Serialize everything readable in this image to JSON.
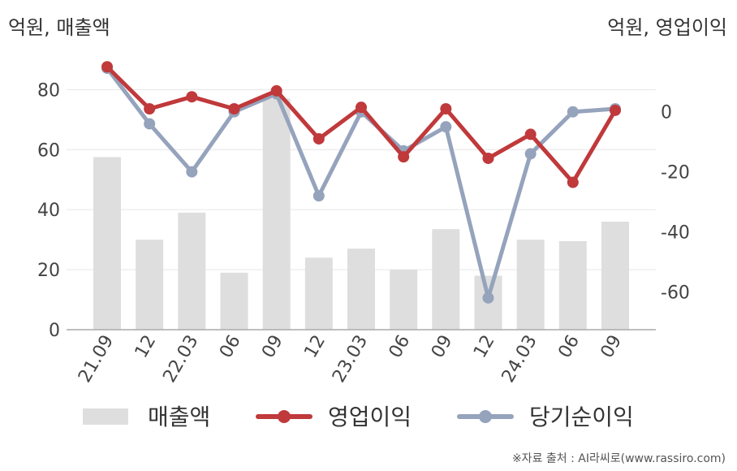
{
  "units": {
    "left": "억원, 매출액",
    "right": "억원, 영업이익"
  },
  "source": "※자료 출처 : AI라씨로(www.rassiro.com)",
  "colors": {
    "revenue": "#dedede",
    "operating_profit": "#c0393b",
    "net_income": "#95a3bc",
    "grid": "#e6e6e6",
    "axis": "#aaaaaa"
  },
  "chart_data": {
    "type": "bar",
    "categories": [
      "21.09",
      "12",
      "22.03",
      "06",
      "09",
      "12",
      "23.03",
      "06",
      "09",
      "12",
      "24.03",
      "06",
      "09"
    ],
    "series": [
      {
        "name": "매출액",
        "kind": "bar",
        "axis": "left",
        "values": [
          57.5,
          30,
          39,
          19,
          77,
          24,
          27,
          20,
          33.5,
          18,
          30,
          29.5,
          36
        ]
      },
      {
        "name": "영업이익",
        "kind": "line",
        "axis": "right",
        "values": [
          15,
          1,
          5,
          1,
          7,
          -9,
          1.5,
          -15,
          1,
          -15.5,
          -7.5,
          -23.5,
          0.5
        ]
      },
      {
        "name": "당기순이익",
        "kind": "line",
        "axis": "right",
        "values": [
          14.5,
          -4,
          -20,
          0,
          6,
          -28,
          0,
          -13,
          -5,
          -62,
          -14,
          0,
          1
        ]
      }
    ],
    "y_left": {
      "ticks": [
        0,
        20,
        40,
        60,
        80
      ],
      "range": [
        0,
        92
      ]
    },
    "y_right": {
      "ticks": [
        0,
        -20,
        -40,
        -60
      ],
      "range": [
        -72.6,
        19.4
      ]
    },
    "grid": true,
    "legend": {
      "placement": "bottom",
      "items": [
        "매출액",
        "영업이익",
        "당기순이익"
      ]
    }
  }
}
